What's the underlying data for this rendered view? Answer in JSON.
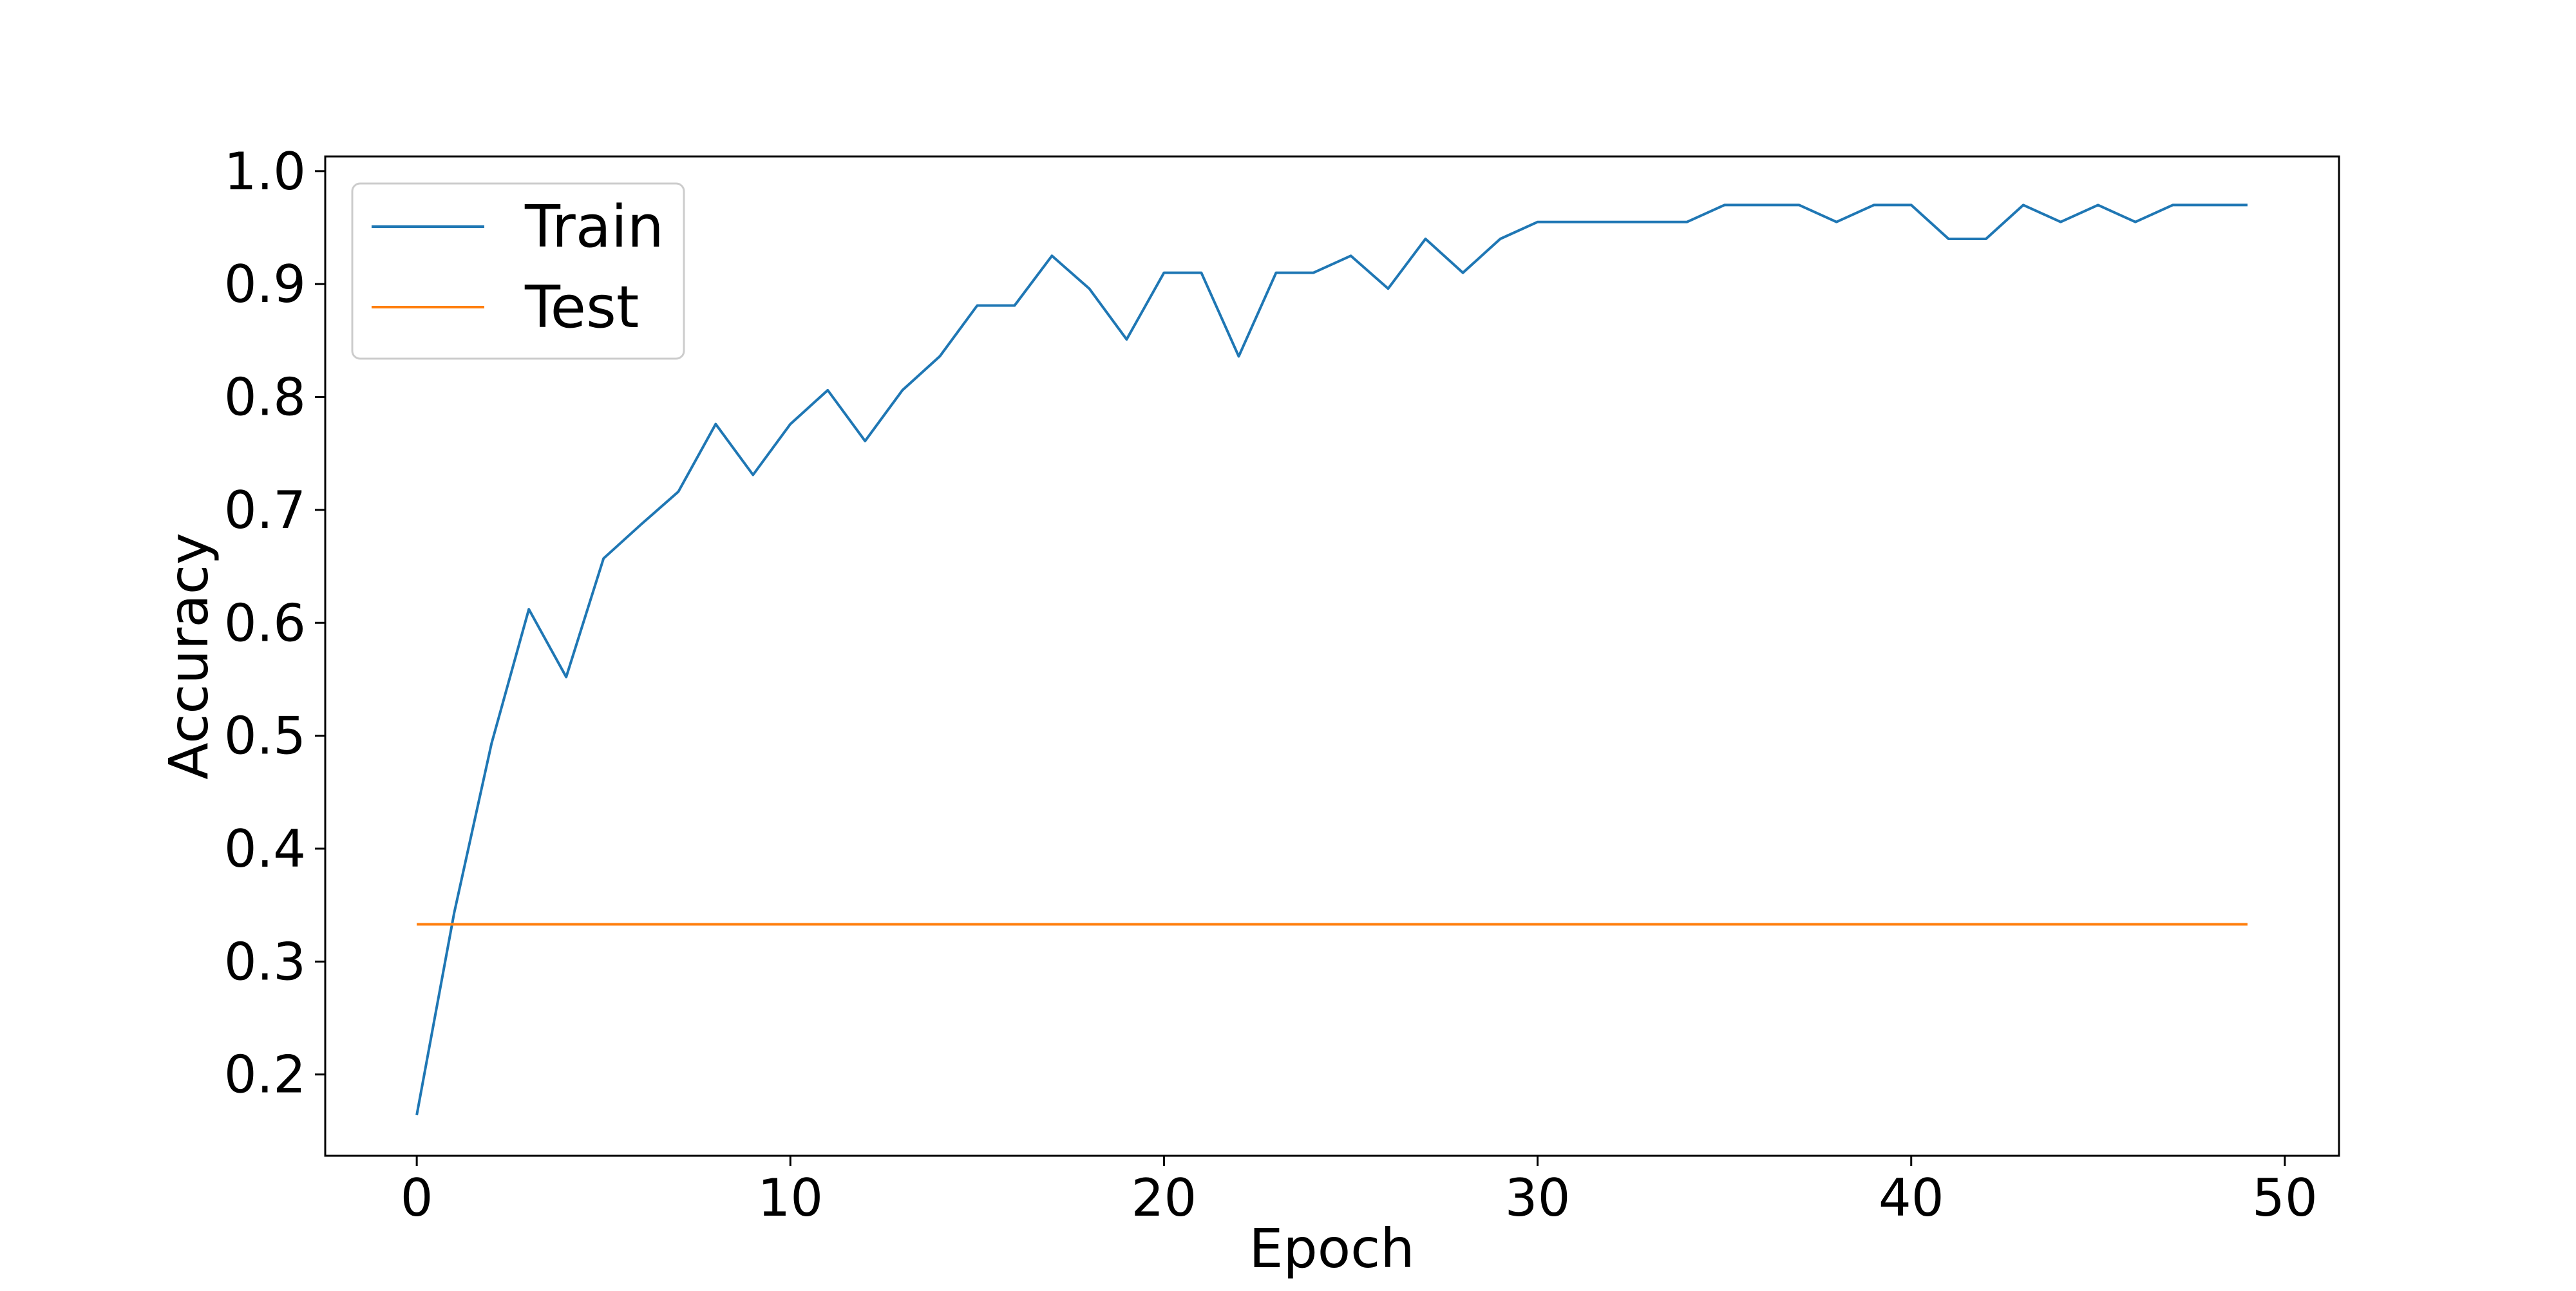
{
  "chart_data": {
    "type": "line",
    "title": "",
    "xlabel": "Epoch",
    "ylabel": "Accuracy",
    "xlim": [
      -2.45,
      51.45
    ],
    "ylim": [
      0.128,
      1.013
    ],
    "xticks": [
      0,
      10,
      20,
      30,
      40,
      50
    ],
    "xtick_labels": [
      "0",
      "10",
      "20",
      "30",
      "40",
      "50"
    ],
    "yticks": [
      0.2,
      0.3,
      0.4,
      0.5,
      0.6,
      0.7,
      0.8,
      0.9,
      1.0
    ],
    "ytick_labels": [
      "0.2",
      "0.3",
      "0.4",
      "0.5",
      "0.6",
      "0.7",
      "0.8",
      "0.9",
      "1.0"
    ],
    "grid": false,
    "legend_position": "top-left",
    "x": [
      0,
      1,
      2,
      3,
      4,
      5,
      6,
      7,
      8,
      9,
      10,
      11,
      12,
      13,
      14,
      15,
      16,
      17,
      18,
      19,
      20,
      21,
      22,
      23,
      24,
      25,
      26,
      27,
      28,
      29,
      30,
      31,
      32,
      33,
      34,
      35,
      36,
      37,
      38,
      39,
      40,
      41,
      42,
      43,
      44,
      45,
      46,
      47,
      48,
      49
    ],
    "series": [
      {
        "name": "Train",
        "color": "#1f77b4",
        "values": [
          0.164,
          0.343,
          0.493,
          0.612,
          0.552,
          0.657,
          0.687,
          0.716,
          0.776,
          0.731,
          0.776,
          0.806,
          0.761,
          0.806,
          0.836,
          0.881,
          0.881,
          0.925,
          0.896,
          0.851,
          0.91,
          0.91,
          0.836,
          0.91,
          0.91,
          0.925,
          0.896,
          0.94,
          0.91,
          0.94,
          0.955,
          0.955,
          0.955,
          0.955,
          0.955,
          0.97,
          0.97,
          0.97,
          0.955,
          0.97,
          0.97,
          0.94,
          0.94,
          0.97,
          0.955,
          0.97,
          0.955,
          0.97,
          0.97,
          0.97
        ]
      },
      {
        "name": "Test",
        "color": "#ff7f0e",
        "values": [
          0.333,
          0.333,
          0.333,
          0.333,
          0.333,
          0.333,
          0.333,
          0.333,
          0.333,
          0.333,
          0.333,
          0.333,
          0.333,
          0.333,
          0.333,
          0.333,
          0.333,
          0.333,
          0.333,
          0.333,
          0.333,
          0.333,
          0.333,
          0.333,
          0.333,
          0.333,
          0.333,
          0.333,
          0.333,
          0.333,
          0.333,
          0.333,
          0.333,
          0.333,
          0.333,
          0.333,
          0.333,
          0.333,
          0.333,
          0.333,
          0.333,
          0.333,
          0.333,
          0.333,
          0.333,
          0.333,
          0.333,
          0.333,
          0.333,
          0.333
        ]
      }
    ]
  }
}
